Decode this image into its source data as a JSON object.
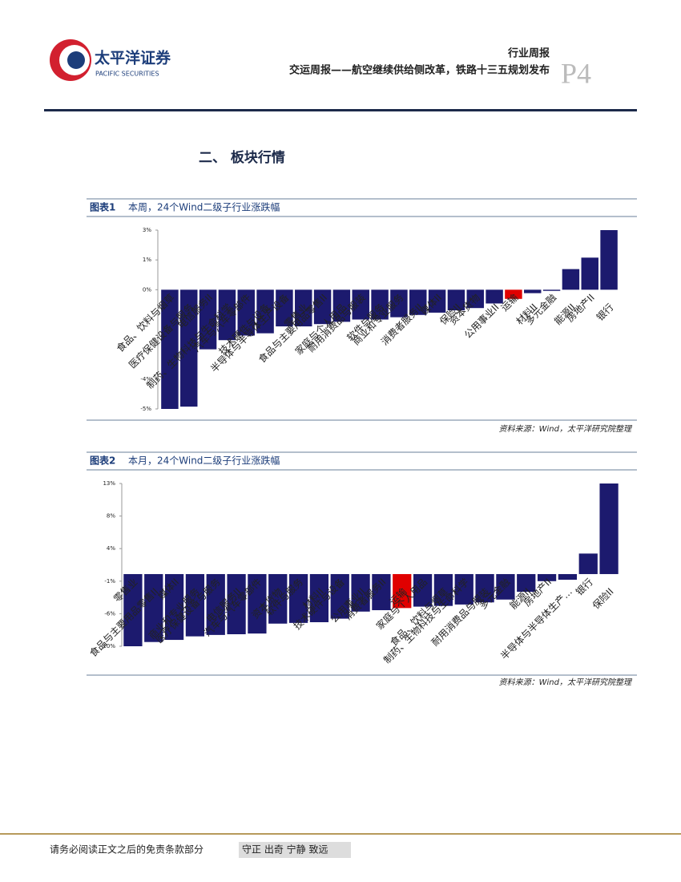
{
  "header": {
    "logo_cn": "太平洋证券",
    "logo_en": "PACIFIC SECURITIES",
    "report_type": "行业周报",
    "report_title": "交运周报——航空继续供给侧改革，铁路十三五规划发布",
    "page": "P4"
  },
  "section_title": "二、 板块行情",
  "chart_data": [
    {
      "type": "bar",
      "label": "图表1",
      "title": "本周，24个Wind二级子行业涨跌幅",
      "source": "资料来源：Wind，太平洋研究院整理",
      "categories": [
        "食品、饮料与烟草",
        "医疗保健设备与服务",
        "电信服务II",
        "制药、生物科技与生命科学",
        "汽车与汽车零部件",
        "技术硬件与设备",
        "半导体与半导体生产设备",
        "零售业",
        "食品与主要用品零售II",
        "家庭与个人用品",
        "耐用消费品与服装",
        "软件与服务",
        "商业和专业服务",
        "消费者服务II",
        "媒体II",
        "保险II",
        "资本货物",
        "公用事业II",
        "运输",
        "材料II",
        "多元金融",
        "能源II",
        "房地产II",
        "银行"
      ],
      "values": [
        -5.2,
        -5.1,
        -2.6,
        -2.2,
        -2.0,
        -1.9,
        -1.6,
        -1.6,
        -1.5,
        -1.4,
        -1.3,
        -1.3,
        -1.2,
        -1.1,
        -1.0,
        -0.9,
        -0.8,
        -0.6,
        -0.4,
        -0.15,
        -0.05,
        0.9,
        1.4,
        2.6
      ],
      "colors": [
        "#1c1a6e",
        "#1c1a6e",
        "#1c1a6e",
        "#1c1a6e",
        "#1c1a6e",
        "#1c1a6e",
        "#1c1a6e",
        "#1c1a6e",
        "#1c1a6e",
        "#1c1a6e",
        "#1c1a6e",
        "#1c1a6e",
        "#1c1a6e",
        "#1c1a6e",
        "#1c1a6e",
        "#1c1a6e",
        "#1c1a6e",
        "#1c1a6e",
        "#e00000",
        "#1c1a6e",
        "#1c1a6e",
        "#1c1a6e",
        "#1c1a6e",
        "#1c1a6e"
      ],
      "ylim": [
        -5.2,
        2.6
      ],
      "yticks": [
        {
          "value": 2.6,
          "label": "3%"
        },
        {
          "value": 1.3,
          "label": "1%"
        },
        {
          "value": 0,
          "label": "0%"
        },
        {
          "value": -3.9,
          "label": "-4%"
        },
        {
          "value": -5.2,
          "label": "-5%"
        }
      ]
    },
    {
      "type": "bar",
      "label": "图表2",
      "title": "本月，24个Wind二级子行业涨跌幅",
      "source": "资料来源：Wind，太平洋研究院整理",
      "categories": [
        "零售业",
        "食品与主要用品零售II",
        "媒体II",
        "商业和专业服务",
        "医疗保健设备与服务",
        "电信服务II",
        "汽车与汽车零部件",
        "资本货物",
        "软件与服务",
        "材料II",
        "技术硬件与设备",
        "公用事业II",
        "消费者服务II",
        "运输",
        "家庭与个人用品",
        "食品、饮料与烟草",
        "制药、生物科技与生命科学",
        "耐用消费品与服装",
        "多元金融",
        "能源II",
        "房地产II",
        "半导体与半导体生产…",
        "银行",
        "保险II"
      ],
      "values": [
        -10.2,
        -9.6,
        -9.3,
        -8.8,
        -8.6,
        -8.5,
        -8.4,
        -7.0,
        -6.9,
        -6.8,
        -6.3,
        -5.3,
        -5.1,
        -4.8,
        -4.6,
        -4.5,
        -4.3,
        -4.0,
        -3.6,
        -2.5,
        -1.0,
        -0.8,
        2.9,
        12.8
      ],
      "colors": [
        "#1c1a6e",
        "#1c1a6e",
        "#1c1a6e",
        "#1c1a6e",
        "#1c1a6e",
        "#1c1a6e",
        "#1c1a6e",
        "#1c1a6e",
        "#1c1a6e",
        "#1c1a6e",
        "#1c1a6e",
        "#1c1a6e",
        "#1c1a6e",
        "#e00000",
        "#1c1a6e",
        "#1c1a6e",
        "#1c1a6e",
        "#1c1a6e",
        "#1c1a6e",
        "#1c1a6e",
        "#1c1a6e",
        "#1c1a6e",
        "#1c1a6e",
        "#1c1a6e"
      ],
      "ylim": [
        -10.2,
        12.8
      ],
      "yticks": [
        {
          "value": 12.8,
          "label": "13%"
        },
        {
          "value": 8.2,
          "label": "8%"
        },
        {
          "value": 3.6,
          "label": "4%"
        },
        {
          "value": -1.0,
          "label": "-1%"
        },
        {
          "value": -5.6,
          "label": "-6%"
        },
        {
          "value": -10.2,
          "label": "-10%"
        }
      ]
    }
  ],
  "footer": {
    "disclaimer": "请务必阅读正文之后的免责条款部分",
    "slogan": "守正 出奇 宁静 致远"
  }
}
